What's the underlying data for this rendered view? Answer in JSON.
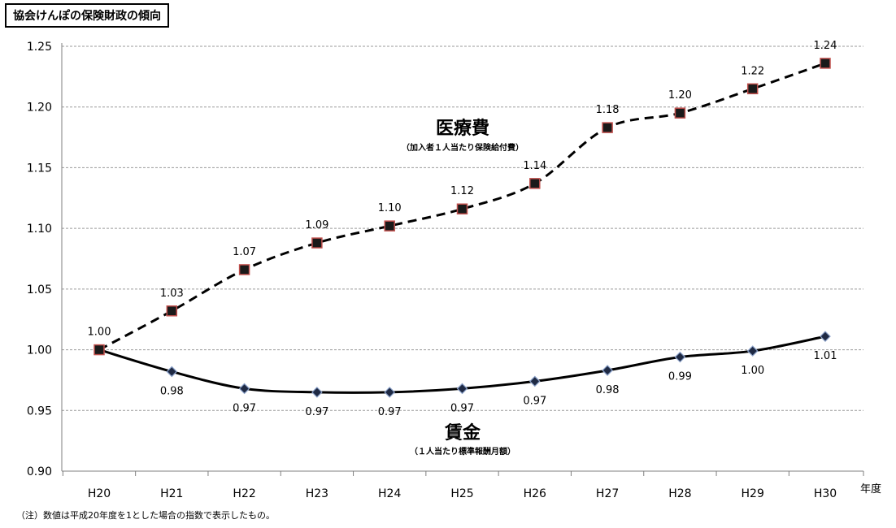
{
  "header": {
    "title": "協会けんぽの保険財政の傾向"
  },
  "footnote": "（注）数値は平成20年度を1とした場合の指数で表示したもの。",
  "chart_data": {
    "type": "line",
    "title": "協会けんぽの保険財政の傾向",
    "xlabel": "年度",
    "ylabel": "",
    "categories": [
      "H20",
      "H21",
      "H22",
      "H23",
      "H24",
      "H25",
      "H26",
      "H27",
      "H28",
      "H29",
      "H30"
    ],
    "ylim": [
      0.9,
      1.25
    ],
    "yticks": [
      0.9,
      0.95,
      1.0,
      1.05,
      1.1,
      1.15,
      1.2,
      1.25
    ],
    "ytick_labels": [
      "0.90",
      "0.95",
      "1.00",
      "1.05",
      "1.10",
      "1.15",
      "1.20",
      "1.25"
    ],
    "grid": true,
    "series": [
      {
        "name": "医療費",
        "subtitle": "（加入者１人当たり保険給付費）",
        "style": "dashed",
        "marker": "square",
        "values": [
          1.0,
          1.032,
          1.066,
          1.088,
          1.102,
          1.116,
          1.137,
          1.183,
          1.195,
          1.215,
          1.236
        ],
        "labels": [
          "1.00",
          "1.03",
          "1.07",
          "1.09",
          "1.10",
          "1.12",
          "1.14",
          "1.18",
          "1.20",
          "1.22",
          "1.24"
        ]
      },
      {
        "name": "賃金",
        "subtitle": "（１人当たり標準報酬月額）",
        "style": "solid",
        "marker": "diamond",
        "values": [
          1.0,
          0.982,
          0.968,
          0.965,
          0.965,
          0.968,
          0.974,
          0.983,
          0.994,
          0.999,
          1.011
        ],
        "labels": [
          "1.00",
          "0.98",
          "0.97",
          "0.97",
          "0.97",
          "0.97",
          "0.97",
          "0.98",
          "0.99",
          "1.00",
          "1.01"
        ]
      }
    ],
    "colors": {
      "marker_fill": "#1a1a1a",
      "marker_edge": "#c0504d",
      "diamond_fill": "#1f2a44",
      "diamond_edge": "#8aa0c8",
      "grid": "#9a9a9a"
    }
  }
}
